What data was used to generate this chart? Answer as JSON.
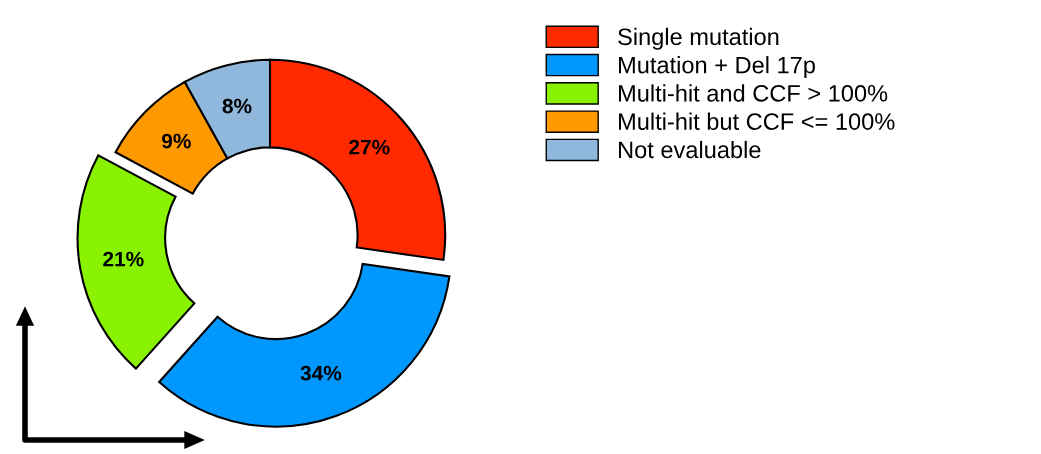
{
  "chart_data": {
    "type": "donut",
    "categories": [
      "Single mutation",
      "Mutation + Del 17p",
      "Multi-hit and CCF > 100%",
      "Multi-hit but CCF <= 100%",
      "Not evaluable"
    ],
    "values": [
      27,
      34,
      21,
      9,
      8
    ],
    "colors": [
      "#ff2a00",
      "#0098ff",
      "#88f200",
      "#ff9900",
      "#8fb8dc"
    ],
    "value_labels": [
      "27%",
      "34%",
      "21%",
      "9%",
      "8%"
    ],
    "legend": "right"
  }
}
